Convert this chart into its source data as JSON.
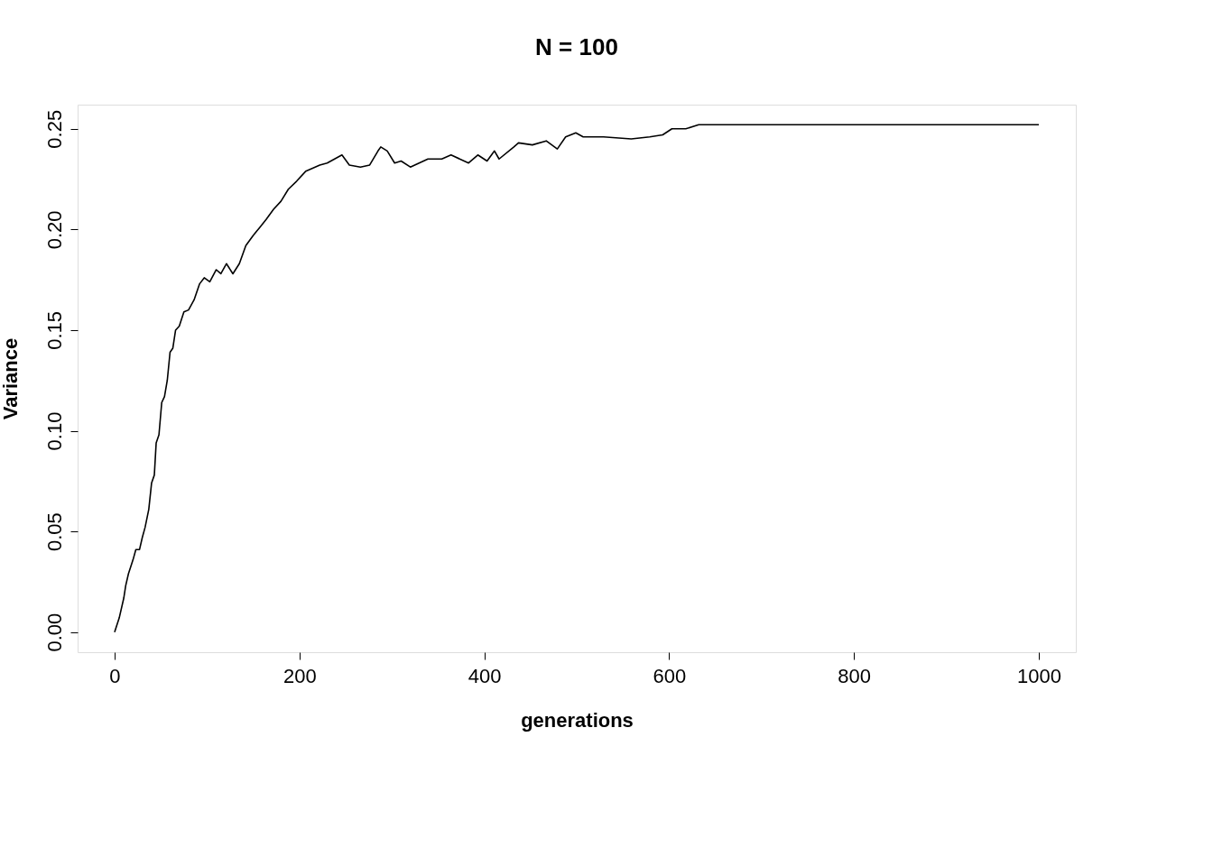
{
  "chart_data": {
    "type": "line",
    "title": "N = 100",
    "xlabel": "generations",
    "ylabel": "Variance",
    "x": [
      0,
      5,
      10,
      12,
      15,
      20,
      23,
      27,
      30,
      33,
      37,
      40,
      43,
      45,
      48,
      51,
      54,
      57,
      60,
      63,
      66,
      70,
      75,
      80,
      86,
      92,
      97,
      103,
      110,
      115,
      121,
      128,
      135,
      142,
      150,
      157,
      164,
      172,
      180,
      188,
      197,
      207,
      222,
      230,
      246,
      254,
      266,
      276,
      285,
      288,
      295,
      303,
      310,
      320,
      339,
      354,
      364,
      383,
      393,
      403,
      411,
      416,
      432,
      437,
      452,
      467,
      479,
      488,
      499,
      507,
      529,
      559,
      579,
      593,
      603,
      618,
      632,
      642,
      1000
    ],
    "series": [
      {
        "color": "#000000",
        "values": [
          0,
          0.007,
          0.017,
          0.023,
          0.029,
          0.036,
          0.041,
          0.041,
          0.047,
          0.052,
          0.061,
          0.074,
          0.078,
          0.094,
          0.098,
          0.114,
          0.117,
          0.125,
          0.139,
          0.141,
          0.15,
          0.152,
          0.159,
          0.16,
          0.165,
          0.173,
          0.176,
          0.174,
          0.18,
          0.178,
          0.183,
          0.178,
          0.183,
          0.192,
          0.197,
          0.201,
          0.205,
          0.21,
          0.214,
          0.22,
          0.224,
          0.229,
          0.232,
          0.233,
          0.237,
          0.232,
          0.231,
          0.232,
          0.239,
          0.241,
          0.239,
          0.233,
          0.234,
          0.231,
          0.235,
          0.235,
          0.237,
          0.233,
          0.237,
          0.234,
          0.239,
          0.235,
          0.241,
          0.243,
          0.242,
          0.244,
          0.24,
          0.246,
          0.248,
          0.246,
          0.246,
          0.245,
          0.246,
          0.247,
          0.25,
          0.25,
          0.252,
          0.252,
          0.252
        ]
      }
    ],
    "xlim": [
      -40,
      1040
    ],
    "xticks": [
      0,
      200,
      400,
      600,
      800,
      1000
    ],
    "ylim": [
      -0.01,
      0.262
    ],
    "yticks": [
      {
        "value": 0,
        "label": "0.00"
      },
      {
        "value": 0.05,
        "label": "0.05"
      },
      {
        "value": 0.1,
        "label": "0.10"
      },
      {
        "value": 0.15,
        "label": "0.15"
      },
      {
        "value": 0.2,
        "label": "0.20"
      },
      {
        "value": 0.25,
        "label": "0.25"
      }
    ],
    "grid": false,
    "legend": false,
    "marker": "none",
    "line_style": "solid"
  }
}
